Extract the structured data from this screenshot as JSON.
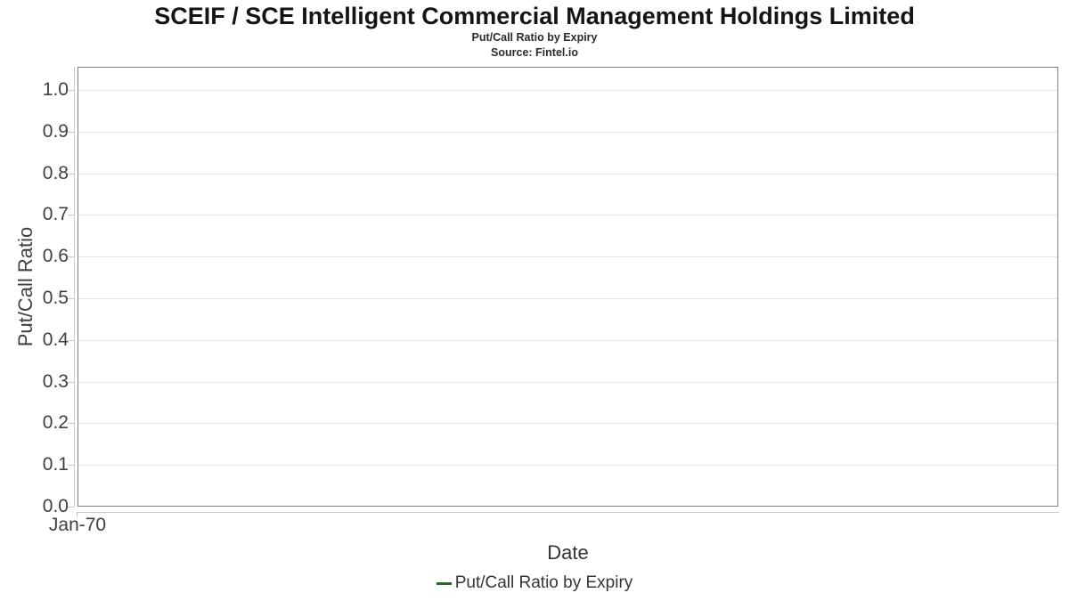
{
  "colors": {
    "title_text": "#141414",
    "subtitle_text": "#2b2b2b",
    "axis_text": "#404040",
    "label_text": "#353535",
    "grid": "#e6e6e6",
    "plot_border": "#808080",
    "tick": "#c9c9c9",
    "legend_marker": "#2d6231"
  },
  "chart_data": {
    "type": "line",
    "title": "SCEIF / SCE Intelligent Commercial Management Holdings Limited",
    "subtitle": "Put/Call Ratio by Expiry",
    "source": "Source: Fintel.io",
    "xlabel": "Date",
    "ylabel": "Put/Call Ratio",
    "x_ticks": [
      "Jan-70"
    ],
    "y_ticks": [
      1.0,
      0.9,
      0.8,
      0.7,
      0.6,
      0.5,
      0.4,
      0.3,
      0.2,
      0.1,
      0.0
    ],
    "ylim": [
      0.0,
      1.05
    ],
    "grid": "horizontal-only",
    "legend": {
      "position": "bottom-center",
      "entries": [
        {
          "label": "Put/Call Ratio by Expiry",
          "color": "#2d6231"
        }
      ]
    },
    "series": [
      {
        "name": "Put/Call Ratio by Expiry",
        "color": "#2d6231",
        "x": [],
        "values": []
      }
    ]
  }
}
